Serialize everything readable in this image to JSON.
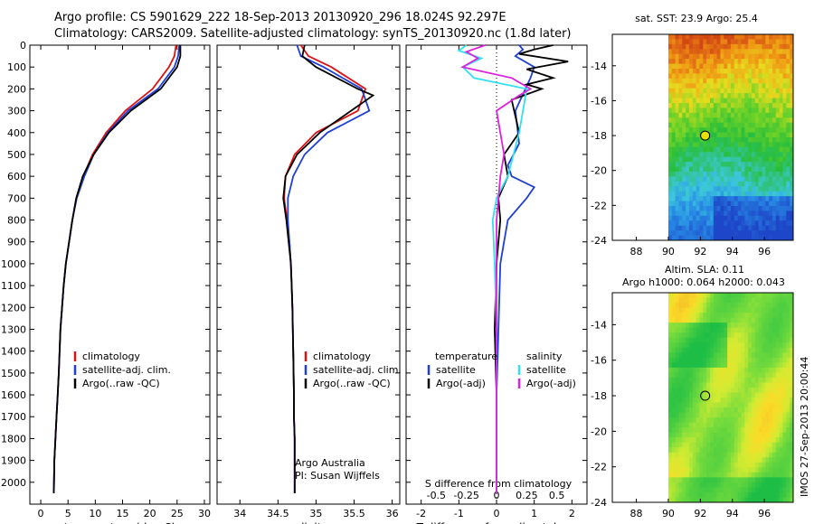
{
  "title": {
    "line1": "Argo profile: CS 5901629_222 18-Sep-2013 20130920_296 18.024S 92.297E",
    "line2": "Climatology: CARS2009. Satellite-adjusted climatology: synTS_20130920.nc (1.8d later)"
  },
  "stamp": "IMOS 27-Sep-2013 20:00:44",
  "colors": {
    "climatology": "#dd1111",
    "satellite": "#1f3fd6",
    "argo": "#000000",
    "salinity_satellite": "#33e0ee",
    "salinity_argo": "#dd22dd"
  },
  "chart_data": [
    {
      "type": "line",
      "name": "temperature-panel",
      "xlabel": "temperature (deg C)",
      "ylabel": "",
      "xlim": [
        -2,
        31
      ],
      "ylim": [
        2100,
        0
      ],
      "xticks": [
        "0",
        "5",
        "10",
        "15",
        "20",
        "25",
        "30"
      ],
      "xtick_values": [
        0,
        5,
        10,
        15,
        20,
        25,
        30
      ],
      "yticks": [
        "0",
        "100",
        "200",
        "300",
        "400",
        "500",
        "600",
        "700",
        "800",
        "900",
        "1000",
        "1100",
        "1200",
        "1300",
        "1400",
        "1500",
        "1600",
        "1700",
        "1800",
        "1900",
        "2000"
      ],
      "ytick_values": [
        0,
        100,
        200,
        300,
        400,
        500,
        600,
        700,
        800,
        900,
        1000,
        1100,
        1200,
        1300,
        1400,
        1500,
        1600,
        1700,
        1800,
        1900,
        2000
      ],
      "legend": [
        "climatology",
        "satellite-adj. clim.",
        "Argo(..raw -QC)"
      ],
      "series": [
        {
          "name": "climatology",
          "color_key": "climatology",
          "x": [
            24.8,
            24.5,
            23.5,
            20.5,
            15.5,
            12.0,
            9.5,
            7.8,
            6.5,
            5.8,
            5.2,
            4.6,
            4.2,
            3.9,
            3.6,
            3.3,
            3.1,
            2.9,
            2.7,
            2.5,
            2.4
          ],
          "y": [
            0,
            50,
            100,
            200,
            300,
            400,
            500,
            600,
            700,
            800,
            900,
            1000,
            1100,
            1200,
            1300,
            1500,
            1600,
            1700,
            1800,
            1900,
            2050
          ]
        },
        {
          "name": "satellite-adj. clim.",
          "color_key": "satellite",
          "x": [
            25.4,
            25.2,
            24.5,
            21.5,
            16.0,
            12.3,
            9.7,
            8.0,
            6.6,
            5.8,
            5.2,
            4.6,
            4.2,
            3.9,
            3.6,
            3.3,
            3.1,
            2.9,
            2.7,
            2.5,
            2.4
          ],
          "y": [
            0,
            50,
            100,
            200,
            300,
            400,
            500,
            600,
            700,
            800,
            900,
            1000,
            1100,
            1200,
            1300,
            1500,
            1600,
            1700,
            1800,
            1900,
            2050
          ]
        },
        {
          "name": "Argo(..raw -QC)",
          "color_key": "argo",
          "x": [
            25.6,
            25.6,
            25.0,
            22.0,
            16.5,
            12.5,
            9.7,
            7.7,
            6.5,
            5.8,
            5.2,
            4.6,
            4.2,
            3.9,
            3.6,
            3.3,
            3.1,
            2.9,
            2.7,
            2.5,
            2.4
          ],
          "y": [
            0,
            50,
            100,
            200,
            300,
            400,
            500,
            600,
            700,
            800,
            900,
            1000,
            1100,
            1200,
            1300,
            1500,
            1600,
            1700,
            1800,
            1900,
            2050
          ]
        }
      ]
    },
    {
      "type": "line",
      "name": "salinity-panel",
      "xlabel": "salinity",
      "xlim": [
        33.7,
        36.1
      ],
      "ylim": [
        2100,
        0
      ],
      "xticks": [
        "34",
        "34.5",
        "35",
        "35.5",
        "36"
      ],
      "xtick_values": [
        34,
        34.5,
        35,
        35.5,
        36
      ],
      "legend": [
        "climatology",
        "satellite-adj. clim.",
        "Argo(..raw -QC)"
      ],
      "annotations": [
        "Argo Australia",
        "PI: Susan Wijffels"
      ],
      "series": [
        {
          "name": "climatology",
          "color_key": "climatology",
          "x": [
            34.8,
            34.9,
            35.2,
            35.65,
            35.55,
            35.0,
            34.72,
            34.6,
            34.58,
            34.62,
            34.65,
            34.67,
            34.68,
            34.69,
            34.7,
            34.71,
            34.71,
            34.72,
            34.72,
            34.72
          ],
          "y": [
            0,
            50,
            100,
            200,
            300,
            400,
            500,
            600,
            700,
            800,
            900,
            1000,
            1100,
            1200,
            1400,
            1600,
            1700,
            1800,
            1900,
            2050
          ]
        },
        {
          "name": "satellite-adj. clim.",
          "color_key": "satellite",
          "x": [
            34.75,
            34.8,
            35.1,
            35.6,
            35.7,
            35.15,
            34.85,
            34.7,
            34.63,
            34.63,
            34.65,
            34.67,
            34.68,
            34.69,
            34.7,
            34.71,
            34.71,
            34.72,
            34.72,
            34.72
          ],
          "y": [
            0,
            50,
            100,
            200,
            300,
            400,
            500,
            600,
            700,
            800,
            900,
            1000,
            1100,
            1200,
            1400,
            1600,
            1700,
            1800,
            1900,
            2050
          ]
        },
        {
          "name": "Argo(..raw -QC)",
          "color_key": "argo",
          "x": [
            34.85,
            34.82,
            35.0,
            35.55,
            35.75,
            35.05,
            34.75,
            34.6,
            34.57,
            34.61,
            34.64,
            34.67,
            34.68,
            34.69,
            34.7,
            34.71,
            34.71,
            34.72,
            34.72,
            34.72
          ],
          "y": [
            0,
            50,
            100,
            200,
            230,
            400,
            500,
            600,
            700,
            800,
            900,
            1000,
            1100,
            1200,
            1400,
            1600,
            1700,
            1800,
            1900,
            2050
          ]
        }
      ]
    },
    {
      "type": "line",
      "name": "difference-panel",
      "xlabel": "T difference from climatology",
      "top_xlabel": "S difference from climatology",
      "xlim": [
        -2.4,
        2.4
      ],
      "ylim": [
        2100,
        0
      ],
      "xticks": [
        "-2",
        "-1",
        "0",
        "1",
        "2"
      ],
      "xtick_values": [
        -2,
        -1,
        0,
        1,
        2
      ],
      "top_xticks": [
        "-0.5",
        "-0.25",
        "0",
        "0.25",
        "0.5"
      ],
      "top_xtick_values": [
        -1.6,
        -0.8,
        0,
        0.8,
        1.6
      ],
      "legend_temperature": [
        "temperature",
        "satellite",
        "Argo(-adj)"
      ],
      "legend_salinity": [
        "salinity",
        "satellite",
        "Argo(-adj)"
      ],
      "series": [
        {
          "name": "temperature satellite",
          "color_key": "satellite",
          "x": [
            0.6,
            0.7,
            0.5,
            1.0,
            0.9,
            0.5,
            0.6,
            0.3,
            0.4,
            1.0,
            0.8,
            0.3,
            0.2,
            0.1,
            0.05,
            0.0,
            0.0,
            0.0
          ],
          "y": [
            0,
            20,
            50,
            100,
            150,
            300,
            450,
            550,
            600,
            650,
            700,
            800,
            900,
            1000,
            1300,
            1600,
            1800,
            2050
          ]
        },
        {
          "name": "temperature Argo(-adj)",
          "color_key": "argo",
          "x": [
            1.5,
            1.0,
            0.6,
            1.9,
            0.8,
            1.5,
            0.8,
            1.2,
            0.4,
            0.6,
            0.2,
            0.3,
            0.05,
            0.1,
            0.0,
            -0.05,
            0.0,
            0.0,
            0.0
          ],
          "y": [
            0,
            20,
            40,
            75,
            110,
            150,
            180,
            200,
            250,
            400,
            500,
            600,
            700,
            800,
            1000,
            1300,
            1600,
            1800,
            2050
          ]
        },
        {
          "name": "salinity satellite",
          "color_key": "salinity_satellite",
          "x": [
            -0.8,
            -1.0,
            -0.4,
            -0.9,
            -0.6,
            0.8,
            0.7,
            0.6,
            0.3,
            0.0,
            -0.1,
            -0.05,
            0.0,
            0.0,
            0.0
          ],
          "y": [
            0,
            25,
            60,
            100,
            150,
            200,
            300,
            400,
            600,
            700,
            800,
            1000,
            1300,
            1600,
            2050
          ]
        },
        {
          "name": "salinity Argo(-adj)",
          "color_key": "salinity_argo",
          "x": [
            -0.3,
            -0.8,
            -0.5,
            -0.9,
            0.4,
            0.9,
            0.6,
            0.0,
            0.2,
            0.1,
            0.0,
            0.0,
            0.0,
            0.0
          ],
          "y": [
            0,
            30,
            60,
            100,
            150,
            200,
            230,
            300,
            500,
            600,
            800,
            1000,
            1500,
            2050
          ]
        }
      ]
    },
    {
      "type": "heatmap",
      "name": "sst-map",
      "title": "sat. SST: 23.9 Argo: 25.4",
      "xlim": [
        86.5,
        97.8
      ],
      "ylim": [
        -24,
        -12.2
      ],
      "xticks": [
        "88",
        "90",
        "92",
        "94",
        "96"
      ],
      "xtick_values": [
        88,
        90,
        92,
        94,
        96
      ],
      "yticks": [
        "-14",
        "-16",
        "-18",
        "-20",
        "-22",
        "-24"
      ],
      "ytick_values": [
        -14,
        -16,
        -18,
        -20,
        -22,
        -24
      ],
      "marker": {
        "x": 92.3,
        "y": -18.0
      },
      "data_lon_start": 90
    },
    {
      "type": "heatmap",
      "name": "sla-map",
      "title": "Altim. SLA: 0.11",
      "subtitle": "Argo h1000: 0.064 h2000: 0.043",
      "xlim": [
        86.5,
        97.8
      ],
      "ylim": [
        -24,
        -12.2
      ],
      "xticks": [
        "88",
        "90",
        "92",
        "94",
        "96"
      ],
      "xtick_values": [
        88,
        90,
        92,
        94,
        96
      ],
      "yticks": [
        "-14",
        "-16",
        "-18",
        "-20",
        "-22",
        "-24"
      ],
      "ytick_values": [
        -14,
        -16,
        -18,
        -20,
        -22,
        -24
      ],
      "marker": {
        "x": 92.3,
        "y": -18.0
      },
      "data_lon_start": 90
    }
  ]
}
